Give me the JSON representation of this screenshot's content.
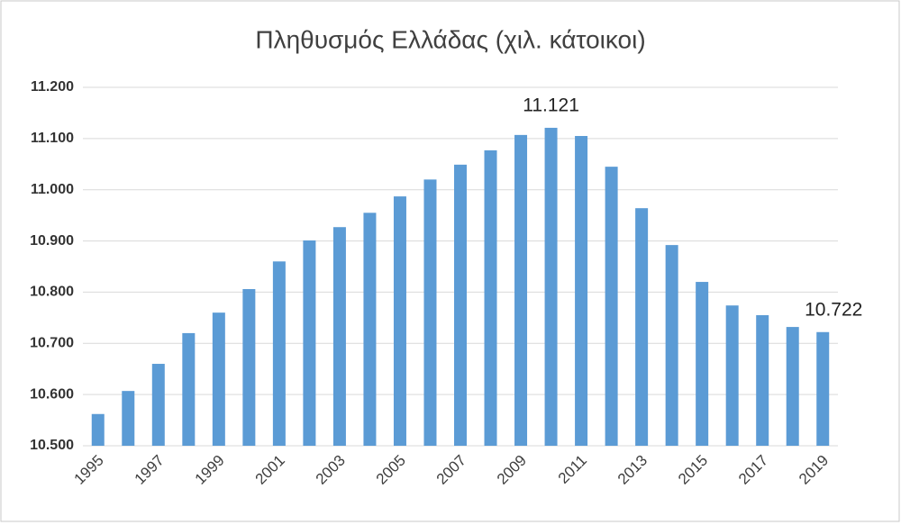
{
  "chart_data": {
    "type": "bar",
    "title": "Πληθυσμός Ελλάδας (χιλ. κάτοικοι)",
    "categories": [
      "1995",
      null,
      "1997",
      null,
      "1999",
      null,
      "2001",
      null,
      "2003",
      null,
      "2005",
      null,
      "2007",
      null,
      "2009",
      null,
      "2011",
      null,
      "2013",
      null,
      "2015",
      null,
      "2017",
      null,
      "2019"
    ],
    "values": [
      10562,
      10607,
      10660,
      10720,
      10760,
      10806,
      10860,
      10901,
      10927,
      10955,
      10987,
      11020,
      11049,
      11077,
      11107,
      11121,
      11105,
      11045,
      10964,
      10892,
      10820,
      10774,
      10755,
      10732,
      10722
    ],
    "value_labels": [
      null,
      null,
      null,
      null,
      null,
      null,
      null,
      null,
      null,
      null,
      null,
      null,
      null,
      null,
      null,
      "11.121",
      null,
      null,
      null,
      null,
      null,
      null,
      null,
      null,
      "10.722"
    ],
    "color": "#5b9bd5",
    "ylim": [
      10500,
      11200
    ],
    "yticks": [
      {
        "value": 10500,
        "label": "10.500"
      },
      {
        "value": 10600,
        "label": "10.600"
      },
      {
        "value": 10700,
        "label": "10.700"
      },
      {
        "value": 10800,
        "label": "10.800"
      },
      {
        "value": 10900,
        "label": "10.900"
      },
      {
        "value": 11000,
        "label": "11.000"
      },
      {
        "value": 11100,
        "label": "11.100"
      },
      {
        "value": 11200,
        "label": "11.200"
      }
    ],
    "grid": true
  }
}
